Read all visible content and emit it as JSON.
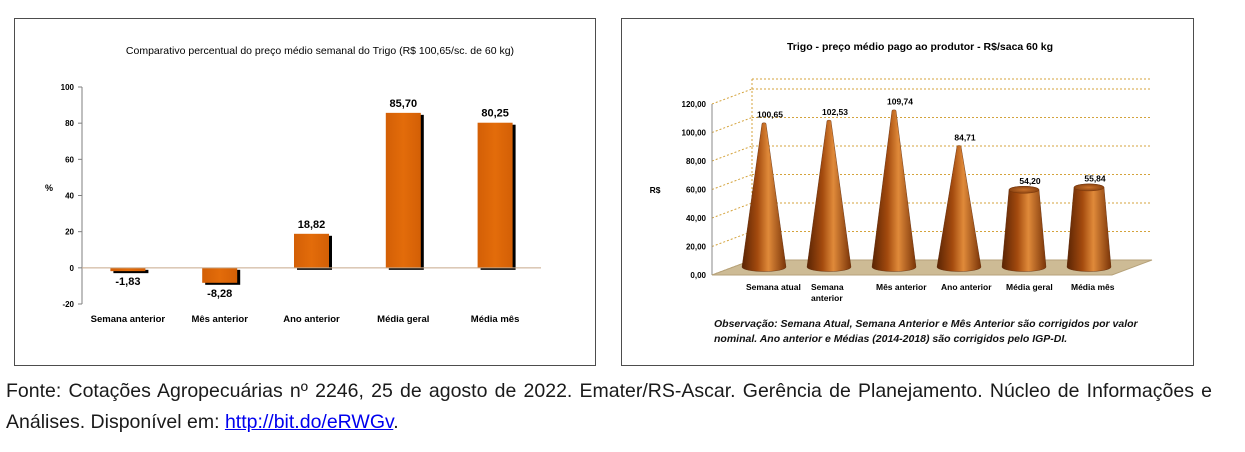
{
  "chart_data": [
    {
      "type": "bar",
      "title": "Comparativo percentual do preço médio semanal do Trigo (R$ 100,65/sc. de 60 kg)",
      "ylabel": "%",
      "xlabel": "",
      "categories": [
        "Semana anterior",
        "Mês anterior",
        "Ano anterior",
        "Média geral",
        "Média mês"
      ],
      "values": [
        -1.83,
        -8.28,
        18.82,
        85.7,
        80.25
      ],
      "value_labels": [
        "-1,83",
        "-8,28",
        "18,82",
        "85,70",
        "80,25"
      ],
      "ylim": [
        -20,
        100
      ],
      "yticks": [
        -20,
        0,
        20,
        40,
        60,
        80,
        100
      ],
      "ytick_labels": [
        "-20",
        "0",
        "20",
        "40",
        "60",
        "80",
        "100"
      ],
      "grid": false,
      "color": "#e36c0a"
    },
    {
      "type": "bar",
      "style": "3d-cone",
      "title": "Trigo - preço médio pago ao produtor - R$/saca 60 kg",
      "ylabel": "R$",
      "xlabel": "",
      "categories": [
        "Semana atual",
        "Semana anterior",
        "Mês anterior",
        "Ano anterior",
        "Média geral",
        "Média mês"
      ],
      "values": [
        100.65,
        102.53,
        109.74,
        84.71,
        54.2,
        55.84
      ],
      "value_labels": [
        "100,65",
        "102,53",
        "109,74",
        "84,71",
        "54,20",
        "55,84"
      ],
      "ylim": [
        0,
        120
      ],
      "yticks": [
        0,
        20,
        40,
        60,
        80,
        100,
        120
      ],
      "ytick_labels": [
        "0,00",
        "20,00",
        "40,00",
        "60,00",
        "80,00",
        "100,00",
        "120,00"
      ],
      "grid": true,
      "note": "Observação: Semana Atual, Semana Anterior e Mês Anterior são corrigidos por valor nominal. Ano anterior e Médias (2014-2018) são corrigidos pelo IGP-DI.",
      "color": "#b8560e"
    }
  ],
  "source": {
    "text": "Fonte: Cotações Agropecuárias nº 2246, 25 de agosto de 2022. Emater/RS-Ascar. Gerência de Planejamento. Núcleo de Informações e Análises. Disponível em: ",
    "link_text": "http://bit.do/eRWGv",
    "suffix": "."
  }
}
